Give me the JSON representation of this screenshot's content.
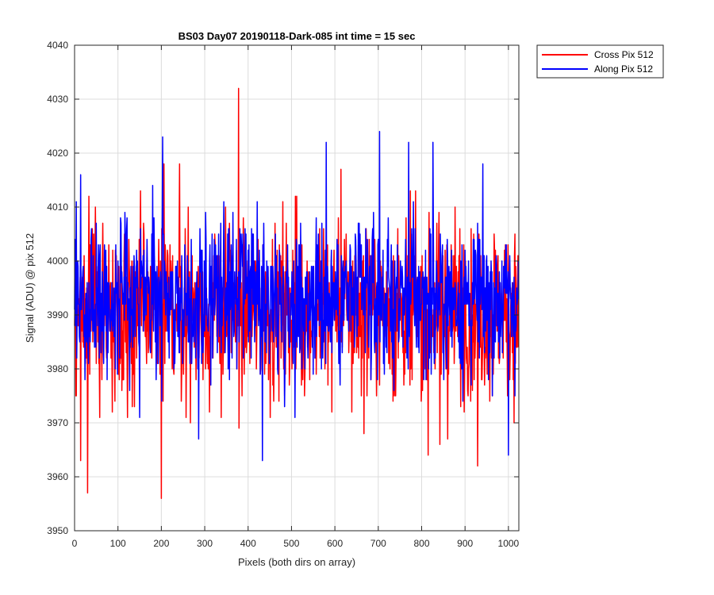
{
  "chart_data": {
    "type": "line",
    "title": "BS03 Day07 20190118-Dark-085 int time = 15 sec",
    "xlabel": "Pixels (both dirs on array)",
    "ylabel": "Signal (ADU) @ pix 512",
    "xlim": [
      0,
      1024
    ],
    "ylim": [
      3950,
      4040
    ],
    "xticks": [
      0,
      100,
      200,
      300,
      400,
      500,
      600,
      700,
      800,
      900,
      1000
    ],
    "yticks": [
      3950,
      3960,
      3970,
      3980,
      3990,
      4000,
      4010,
      4020,
      4030,
      4040
    ],
    "grid": true,
    "legend_position": "outside top-right",
    "series": [
      {
        "name": "Cross Pix 512",
        "color": "#ff0000",
        "noise": {
          "samples": 1024,
          "baseline": 3991,
          "sigma": 8
        },
        "marked_points": [
          [
            14,
            3963
          ],
          [
            30,
            3957
          ],
          [
            200,
            3956
          ],
          [
            206,
            4018
          ],
          [
            242,
            4018
          ],
          [
            378,
            4032
          ],
          [
            614,
            4017
          ],
          [
            815,
            3964
          ],
          [
            842,
            3966
          ],
          [
            929,
            3962
          ]
        ]
      },
      {
        "name": "Along Pix 512",
        "color": "#0000ff",
        "noise": {
          "samples": 1024,
          "baseline": 3993,
          "sigma": 7
        },
        "marked_points": [
          [
            4,
            4011
          ],
          [
            14,
            4016
          ],
          [
            203,
            4023
          ],
          [
            286,
            3967
          ],
          [
            433,
            3963
          ],
          [
            580,
            4022
          ],
          [
            703,
            4024
          ],
          [
            770,
            4022
          ],
          [
            826,
            4022
          ],
          [
            1000,
            3964
          ]
        ]
      }
    ]
  }
}
